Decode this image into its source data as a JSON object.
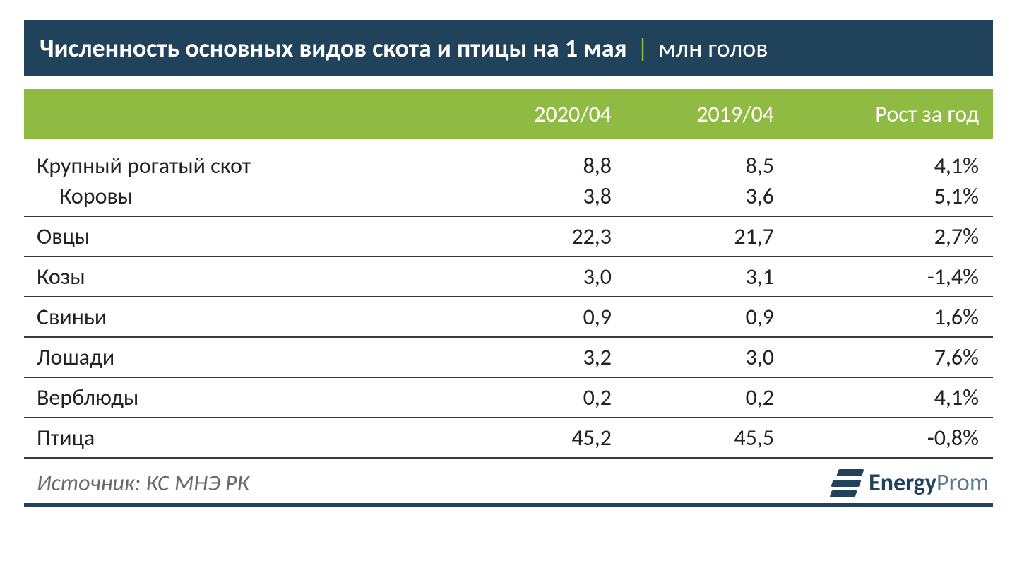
{
  "title": {
    "main": "Численность основных видов скота и птицы на 1 мая",
    "separator": "|",
    "unit": "млн голов"
  },
  "colors": {
    "title_bg": "#20425a",
    "header_bg": "#8fbb42",
    "text": "#222222",
    "source_text": "#6a6a6a",
    "border": "#3a3a3a"
  },
  "columns": [
    "2020/04",
    "2019/04",
    "Рост за год"
  ],
  "rows": [
    {
      "label": "Крупный рогатый скот",
      "indent": false,
      "no_border": true,
      "cells": [
        "8,8",
        "8,5",
        "4,1%"
      ]
    },
    {
      "label": "Коровы",
      "indent": true,
      "no_border": false,
      "cells": [
        "3,8",
        "3,6",
        "5,1%"
      ]
    },
    {
      "label": "Овцы",
      "indent": false,
      "no_border": false,
      "cells": [
        "22,3",
        "21,7",
        "2,7%"
      ]
    },
    {
      "label": "Козы",
      "indent": false,
      "no_border": false,
      "cells": [
        "3,0",
        "3,1",
        "-1,4%"
      ]
    },
    {
      "label": "Свиньи",
      "indent": false,
      "no_border": false,
      "cells": [
        "0,9",
        "0,9",
        "1,6%"
      ]
    },
    {
      "label": "Лошади",
      "indent": false,
      "no_border": false,
      "cells": [
        "3,2",
        "3,0",
        "7,6%"
      ]
    },
    {
      "label": "Верблюды",
      "indent": false,
      "no_border": false,
      "cells": [
        "0,2",
        "0,2",
        "4,1%"
      ]
    },
    {
      "label": "Птица",
      "indent": false,
      "no_border": false,
      "cells": [
        "45,2",
        "45,5",
        "-0,8%"
      ]
    }
  ],
  "source": "Источник: КС МНЭ РК",
  "brand": {
    "strong": "Energy",
    "light": "Prom"
  }
}
